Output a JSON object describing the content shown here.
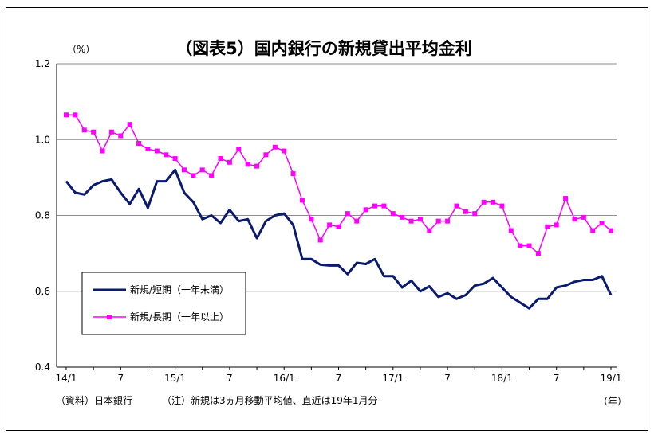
{
  "chart_data": {
    "type": "line",
    "title": "（図表5）国内銀行の新規貸出平均金利",
    "y_unit": "（%）",
    "x_unit": "（年）",
    "ylim": [
      0.4,
      1.2
    ],
    "yticks": [
      "0.4",
      "0.6",
      "0.8",
      "1.0",
      "1.2"
    ],
    "xtick_labels": [
      {
        "index": 0,
        "label": "14/1"
      },
      {
        "index": 6,
        "label": "7"
      },
      {
        "index": 12,
        "label": "15/1"
      },
      {
        "index": 18,
        "label": "7"
      },
      {
        "index": 24,
        "label": "16/1"
      },
      {
        "index": 30,
        "label": "7"
      },
      {
        "index": 36,
        "label": "17/1"
      },
      {
        "index": 42,
        "label": "7"
      },
      {
        "index": 48,
        "label": "18/1"
      },
      {
        "index": 54,
        "label": "7"
      },
      {
        "index": 60,
        "label": "19/1"
      }
    ],
    "grid": true,
    "legend_position": "bottom-left",
    "series": [
      {
        "name": "新規/短期（一年未満）",
        "color": "#0a1a6e",
        "marker": "none",
        "values": [
          0.89,
          0.86,
          0.855,
          0.88,
          0.89,
          0.895,
          0.86,
          0.83,
          0.87,
          0.82,
          0.89,
          0.89,
          0.92,
          0.86,
          0.835,
          0.79,
          0.8,
          0.78,
          0.815,
          0.785,
          0.79,
          0.74,
          0.785,
          0.8,
          0.805,
          0.775,
          0.685,
          0.685,
          0.67,
          0.668,
          0.668,
          0.645,
          0.675,
          0.672,
          0.685,
          0.64,
          0.64,
          0.61,
          0.628,
          0.6,
          0.613,
          0.585,
          0.595,
          0.58,
          0.59,
          0.615,
          0.62,
          0.635,
          0.61,
          0.585,
          0.57,
          0.555,
          0.58,
          0.58,
          0.61,
          0.615,
          0.625,
          0.63,
          0.63,
          0.64,
          0.59
        ]
      },
      {
        "name": "新規/長期（一年以上）",
        "color": "#ff00ff",
        "marker": "square",
        "values": [
          1.065,
          1.065,
          1.025,
          1.02,
          0.97,
          1.02,
          1.01,
          1.04,
          0.99,
          0.975,
          0.97,
          0.96,
          0.95,
          0.92,
          0.905,
          0.92,
          0.905,
          0.95,
          0.94,
          0.975,
          0.935,
          0.93,
          0.96,
          0.98,
          0.97,
          0.91,
          0.84,
          0.79,
          0.735,
          0.775,
          0.77,
          0.805,
          0.785,
          0.815,
          0.825,
          0.825,
          0.805,
          0.795,
          0.785,
          0.79,
          0.76,
          0.785,
          0.785,
          0.825,
          0.81,
          0.805,
          0.835,
          0.835,
          0.825,
          0.76,
          0.72,
          0.72,
          0.7,
          0.77,
          0.775,
          0.845,
          0.79,
          0.795,
          0.76,
          0.78,
          0.76
        ]
      }
    ],
    "notes": {
      "source": "（資料）日本銀行",
      "caption": "（注）新規は3ヵ月移動平均値、直近は19年1月分"
    }
  }
}
